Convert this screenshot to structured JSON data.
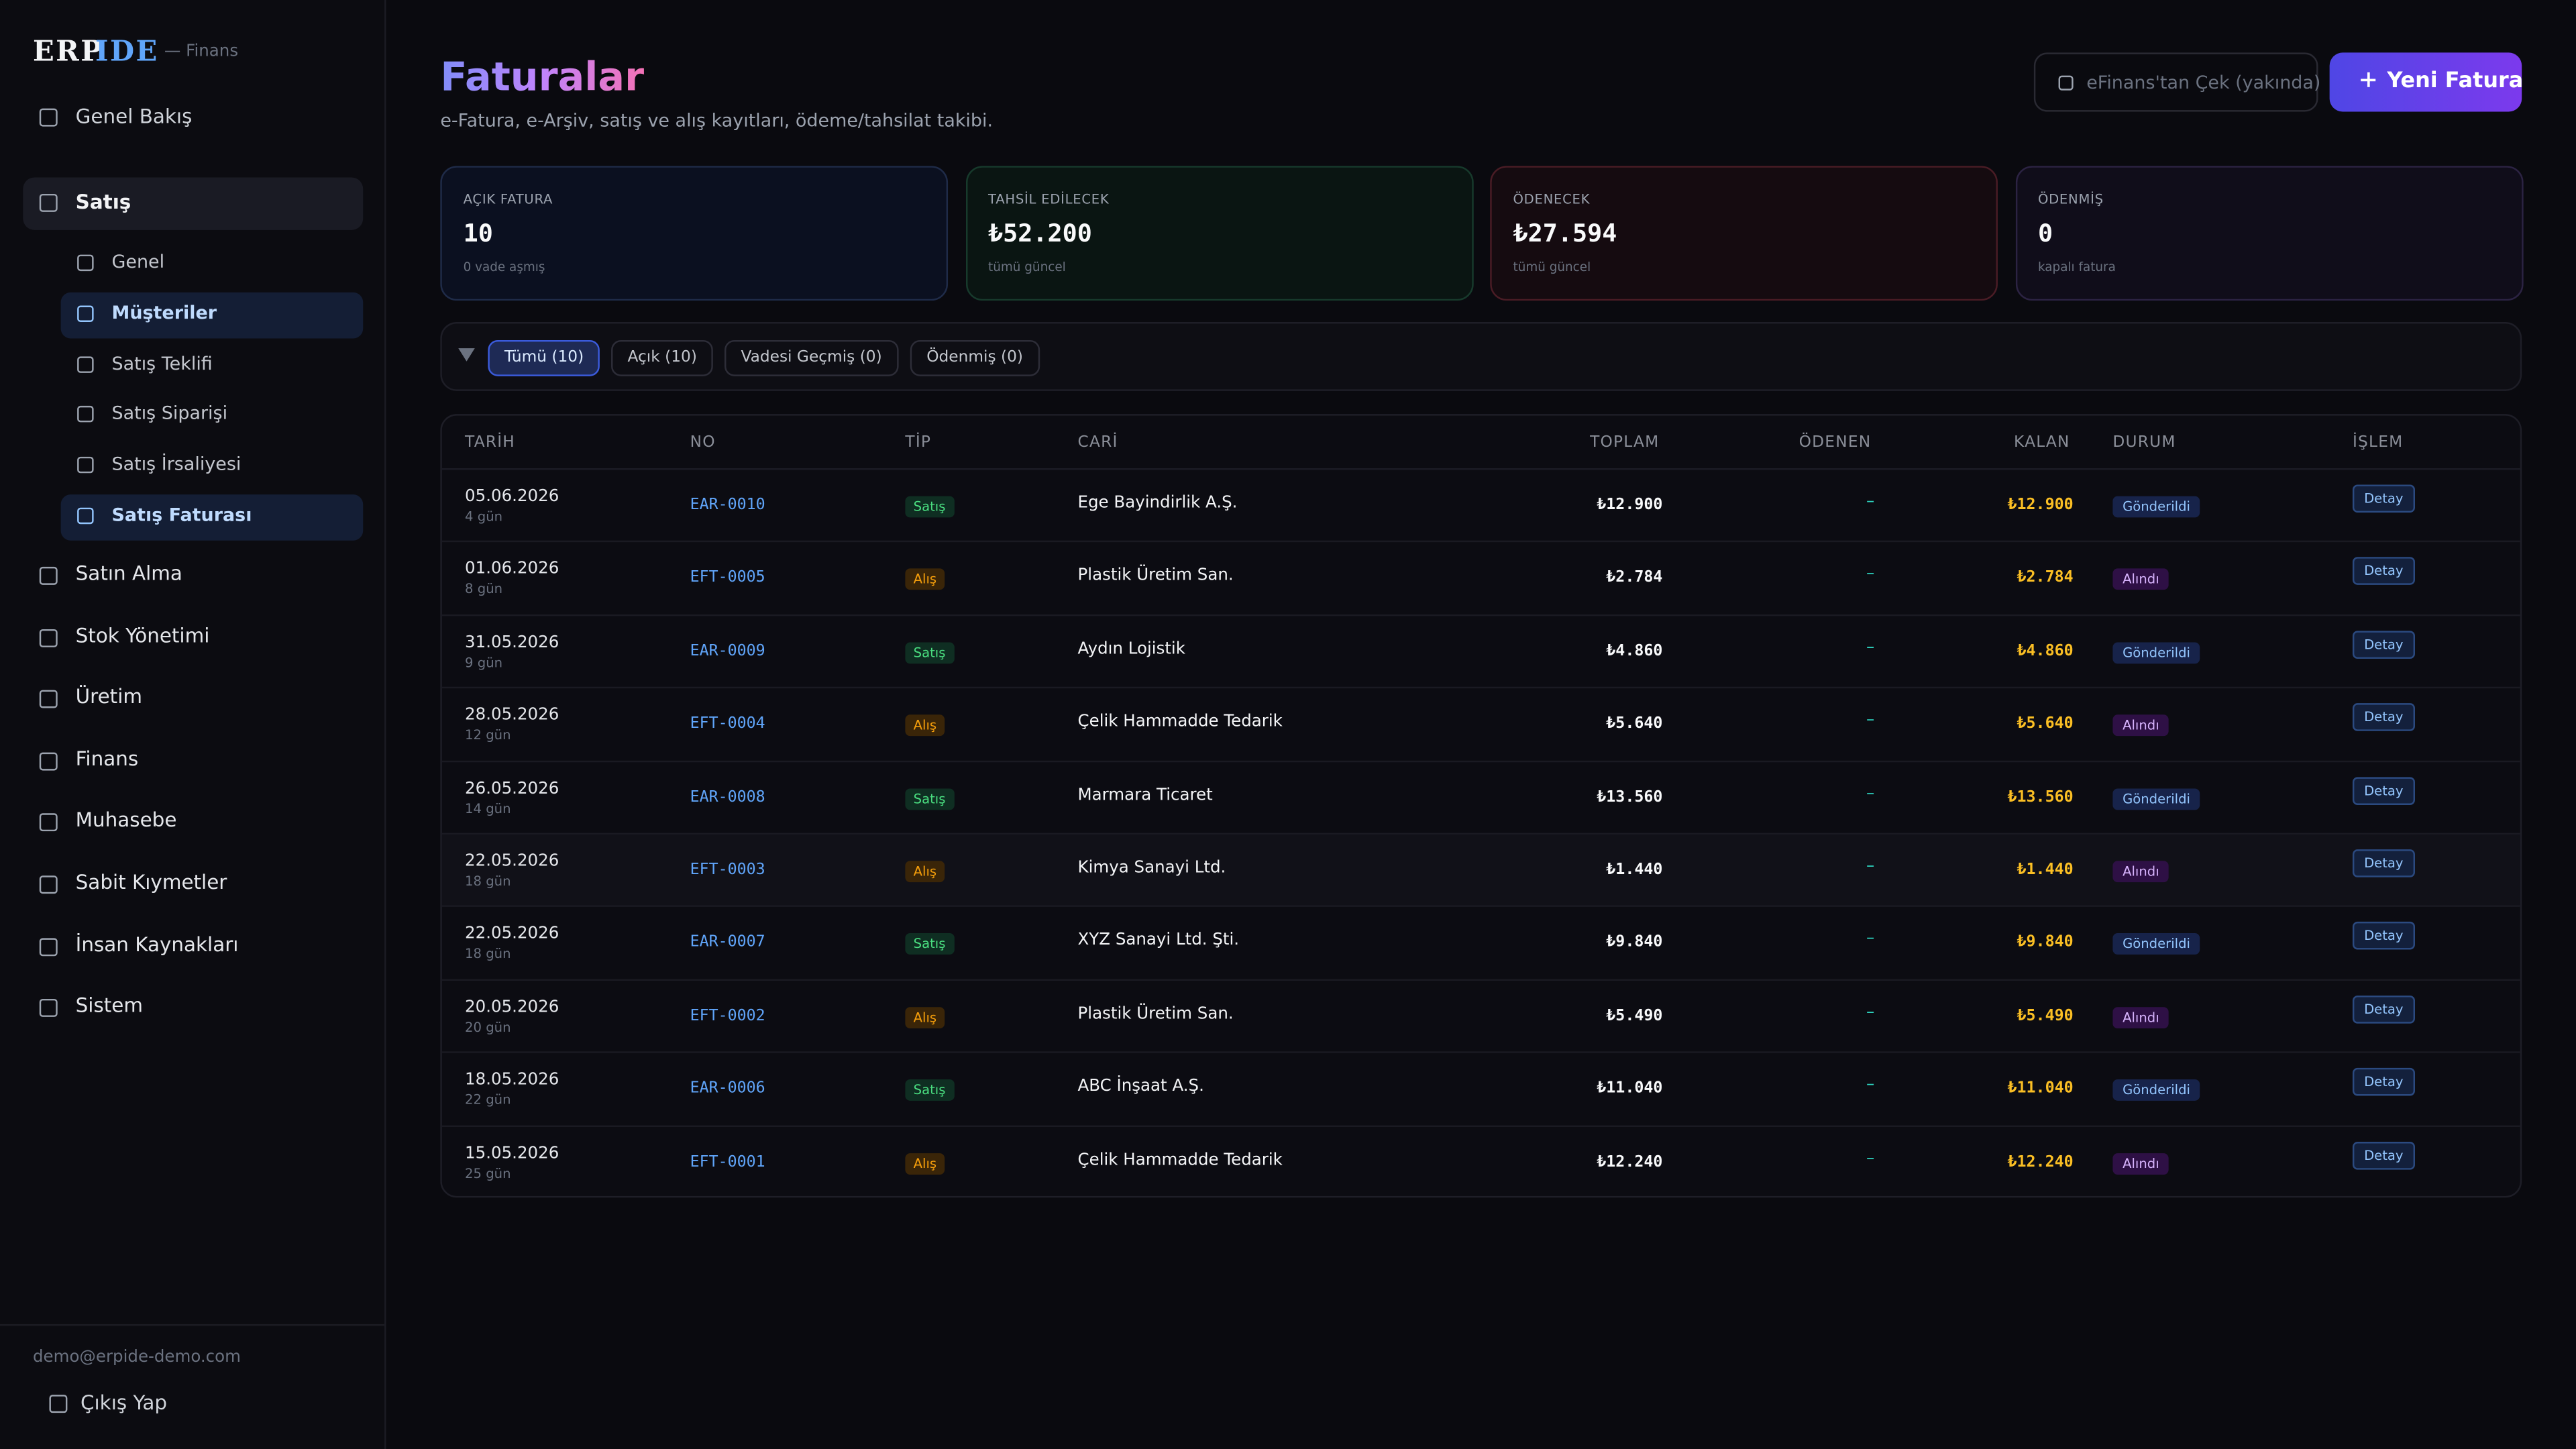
{
  "sidebar": {
    "brand_a": "ERP",
    "brand_b": "IDE",
    "brand_sub": "— Finans",
    "overview": "Genel Bakış",
    "active_group": {
      "label": "Satış",
      "children": [
        "Genel",
        "Müşteriler",
        "Satış Teklifi",
        "Satış Siparişi",
        "Satış İrsaliyesi",
        "Satış Faturası"
      ]
    },
    "groups": [
      "Satın Alma",
      "Stok Yönetimi",
      "Üretim",
      "Finans",
      "Muhasebe",
      "Sabit Kıymetler",
      "İnsan Kaynakları",
      "Sistem"
    ],
    "email": "demo@erpide-demo.com",
    "logout": "Çıkış Yap"
  },
  "header": {
    "title": "Faturalar",
    "subtitle": "e-Fatura, e-Arşiv, satış ve alış kayıtları, ödeme/tahsilat takibi.",
    "secondary_button": "eFinans'tan Çek (yakında)",
    "primary_button": "Yeni Fatura"
  },
  "stats": [
    {
      "label": "AÇIK FATURA",
      "value": "10",
      "note": "0 vade aşmış"
    },
    {
      "label": "TAHSİL EDİLECEK",
      "value": "₺52.200",
      "note": "tümü güncel"
    },
    {
      "label": "ÖDENECEK",
      "value": "₺27.594",
      "note": "tümü güncel"
    },
    {
      "label": "ÖDENMİŞ",
      "value": "0",
      "note": "kapalı fatura"
    }
  ],
  "filters": [
    "Tümü (10)",
    "Açık (10)",
    "Vadesi Geçmiş (0)",
    "Ödenmiş (0)"
  ],
  "table": {
    "columns": [
      "TARİH",
      "NO",
      "TİP",
      "CARİ",
      "TOPLAM",
      "ÖDENEN",
      "KALAN",
      "DURUM",
      "İŞLEM"
    ],
    "rows": [
      [
        "05.06.2026",
        "4 gün",
        "EAR-0010",
        "Satış",
        "Ege Bayindirlik A.Ş.",
        "₺12.900",
        "–",
        "₺12.900",
        "Gönderildi",
        "Detay"
      ],
      [
        "01.06.2026",
        "8 gün",
        "EFT-0005",
        "Alış",
        "Plastik Üretim San.",
        "₺2.784",
        "–",
        "₺2.784",
        "Alındı",
        "Detay"
      ],
      [
        "31.05.2026",
        "9 gün",
        "EAR-0009",
        "Satış",
        "Aydın Lojistik",
        "₺4.860",
        "–",
        "₺4.860",
        "Gönderildi",
        "Detay"
      ],
      [
        "28.05.2026",
        "12 gün",
        "EFT-0004",
        "Alış",
        "Çelik Hammadde Tedarik",
        "₺5.640",
        "–",
        "₺5.640",
        "Alındı",
        "Detay"
      ],
      [
        "26.05.2026",
        "14 gün",
        "EAR-0008",
        "Satış",
        "Marmara Ticaret",
        "₺13.560",
        "–",
        "₺13.560",
        "Gönderildi",
        "Detay"
      ],
      [
        "22.05.2026",
        "18 gün",
        "EFT-0003",
        "Alış",
        "Kimya Sanayi Ltd.",
        "₺1.440",
        "–",
        "₺1.440",
        "Alındı",
        "Detay"
      ],
      [
        "22.05.2026",
        "18 gün",
        "EAR-0007",
        "Satış",
        "XYZ Sanayi Ltd. Şti.",
        "₺9.840",
        "–",
        "₺9.840",
        "Gönderildi",
        "Detay"
      ],
      [
        "20.05.2026",
        "20 gün",
        "EFT-0002",
        "Alış",
        "Plastik Üretim San.",
        "₺5.490",
        "–",
        "₺5.490",
        "Alındı",
        "Detay"
      ],
      [
        "18.05.2026",
        "22 gün",
        "EAR-0006",
        "Satış",
        "ABC İnşaat A.Ş.",
        "₺11.040",
        "–",
        "₺11.040",
        "Gönderildi",
        "Detay"
      ],
      [
        "15.05.2026",
        "25 gün",
        "EFT-0001",
        "Alış",
        "Çelik Hammadde Tedarik",
        "₺12.240",
        "–",
        "₺12.240",
        "Alındı",
        "Detay"
      ]
    ]
  }
}
